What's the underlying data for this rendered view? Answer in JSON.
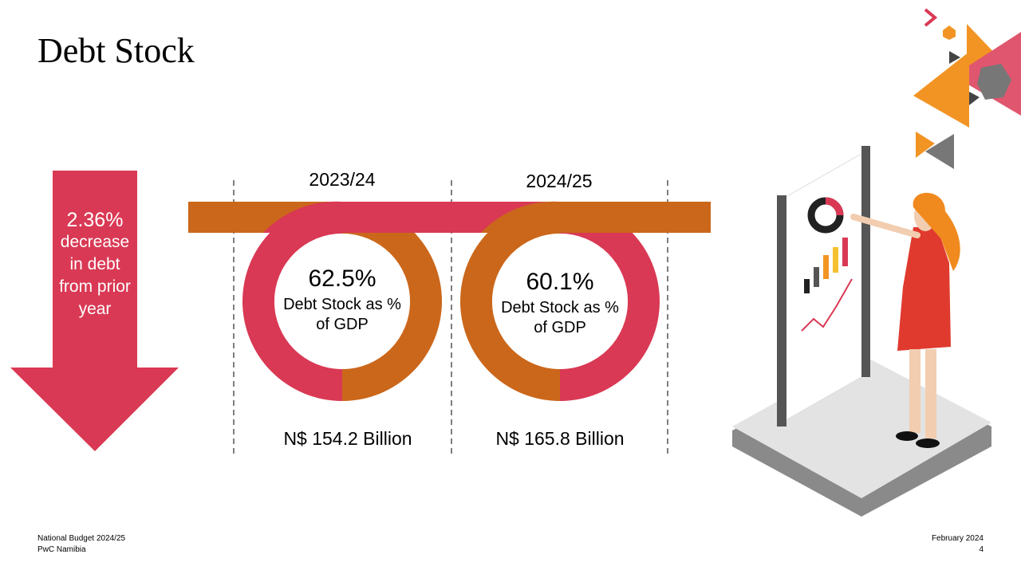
{
  "title": "Debt Stock",
  "arrow": {
    "figure": "2.36%",
    "text": "decrease in debt from prior year"
  },
  "columns": [
    {
      "year": "2023/24",
      "percent": "62.5%",
      "label": "Debt Stock as % of GDP",
      "amount": "N$ 154.2 Billion"
    },
    {
      "year": "2024/25",
      "percent": "60.1%",
      "label": "Debt Stock as % of GDP",
      "amount": "N$ 165.8 Billion"
    }
  ],
  "footer": {
    "left": [
      "National Budget 2024/25",
      "PwC Namibia"
    ],
    "right": [
      "February 2024",
      "4"
    ]
  }
}
